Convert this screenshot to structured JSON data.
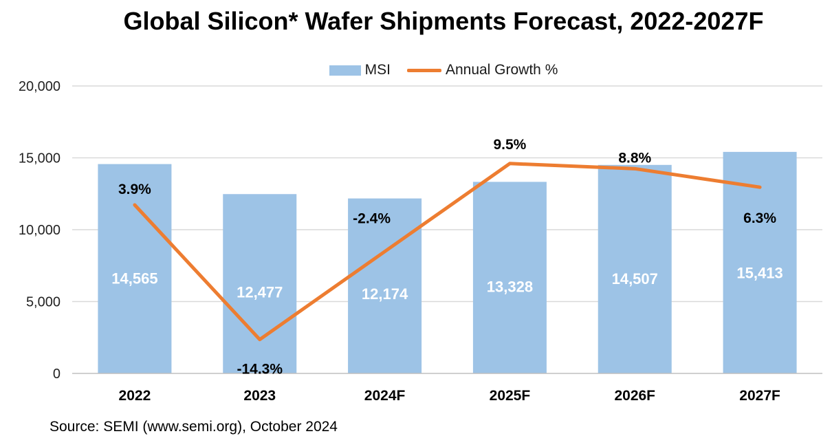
{
  "chart_data": {
    "type": "bar+line",
    "title": "Global Silicon* Wafer Shipments Forecast, 2022-2027F",
    "categories": [
      "2022",
      "2023",
      "2024F",
      "2025F",
      "2026F",
      "2027F"
    ],
    "series": [
      {
        "name": "MSI",
        "type": "bar",
        "values": [
          14565,
          12477,
          12174,
          13328,
          14507,
          15413
        ],
        "labels": [
          "14,565",
          "12,477",
          "12,174",
          "13,328",
          "14,507",
          "15,413"
        ],
        "color": "#9dc3e6"
      },
      {
        "name": "Annual Growth %",
        "type": "line",
        "values": [
          3.9,
          -14.3,
          -2.4,
          9.5,
          8.8,
          6.3
        ],
        "labels": [
          "3.9%",
          "-14.3%",
          "-2.4%",
          "9.5%",
          "8.8%",
          "6.3%"
        ],
        "color": "#ed7d31"
      }
    ],
    "y_axis": {
      "ylim": [
        0,
        20000
      ],
      "ticks": [
        0,
        5000,
        10000,
        15000,
        20000
      ],
      "tick_labels": [
        "0",
        "5,000",
        "10,000",
        "15,000",
        "20,000"
      ]
    },
    "grid": true,
    "legend_position": "top-center",
    "source": "Source: SEMI (www.semi.org), October 2024"
  }
}
